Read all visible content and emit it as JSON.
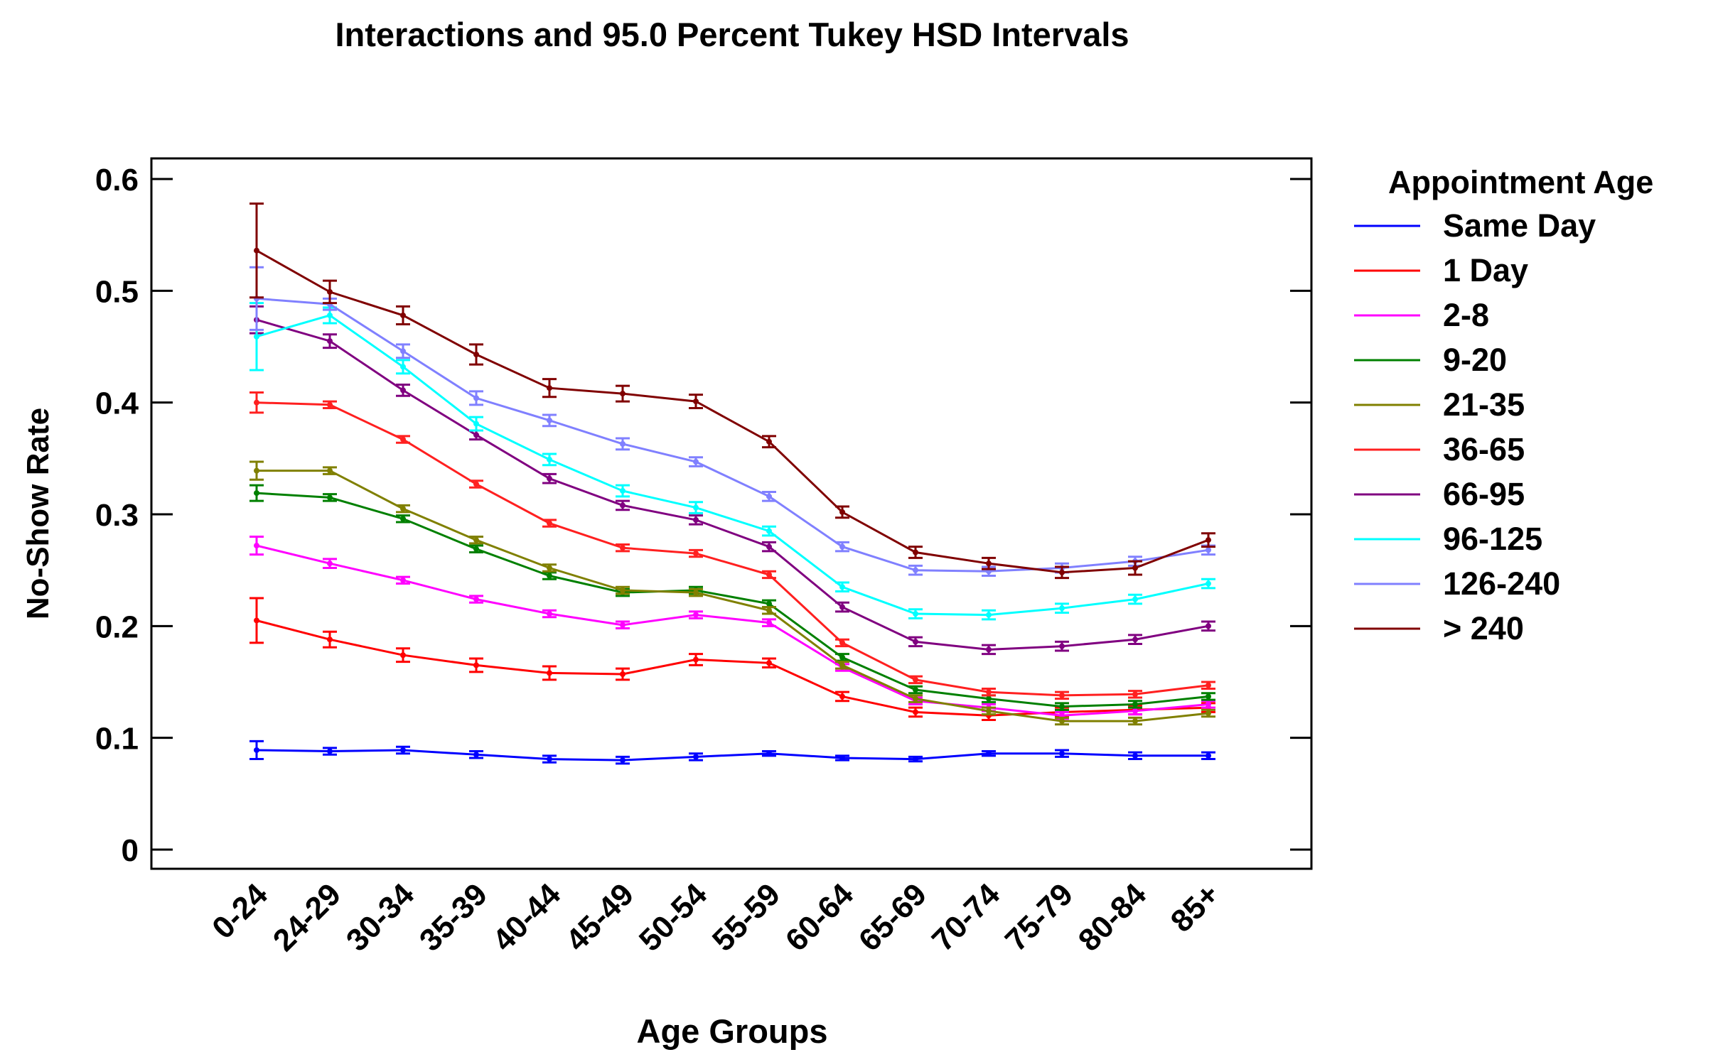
{
  "chart_data": {
    "type": "line",
    "title": "Interactions and 95.0 Percent Tukey HSD Intervals",
    "xlabel": "Age Groups",
    "ylabel": "No-Show Rate",
    "ylim": [
      0,
      0.6
    ],
    "yticks": [
      "0",
      "0.1",
      "0.2",
      "0.3",
      "0.4",
      "0.5",
      "0.6"
    ],
    "grid": false,
    "legend_title": "Appointment Age",
    "legend_position": "right",
    "categories": [
      "0-24",
      "24-29",
      "30-34",
      "35-39",
      "40-44",
      "45-49",
      "50-54",
      "55-59",
      "60-64",
      "65-69",
      "70-74",
      "75-79",
      "80-84",
      "85+"
    ],
    "series": [
      {
        "name": "Same Day",
        "color": "#0000ff",
        "values": [
          0.089,
          0.088,
          0.089,
          0.085,
          0.081,
          0.08,
          0.083,
          0.086,
          0.082,
          0.081,
          0.086,
          0.086,
          0.084,
          0.084
        ],
        "errors": [
          0.008,
          0.003,
          0.003,
          0.003,
          0.003,
          0.003,
          0.003,
          0.002,
          0.002,
          0.002,
          0.002,
          0.003,
          0.003,
          0.003
        ]
      },
      {
        "name": "1 Day",
        "color": "#ff0000",
        "values": [
          0.205,
          0.188,
          0.174,
          0.165,
          0.158,
          0.157,
          0.17,
          0.167,
          0.137,
          0.123,
          0.12,
          0.123,
          0.125,
          0.127
        ],
        "errors": [
          0.02,
          0.007,
          0.006,
          0.006,
          0.006,
          0.005,
          0.005,
          0.004,
          0.004,
          0.004,
          0.004,
          0.004,
          0.004,
          0.004
        ]
      },
      {
        "name": "2-8",
        "color": "#ff00ff",
        "values": [
          0.272,
          0.256,
          0.241,
          0.224,
          0.211,
          0.201,
          0.21,
          0.203,
          0.163,
          0.133,
          0.127,
          0.12,
          0.124,
          0.13
        ],
        "errors": [
          0.008,
          0.004,
          0.003,
          0.003,
          0.003,
          0.003,
          0.003,
          0.003,
          0.003,
          0.003,
          0.003,
          0.003,
          0.003,
          0.003
        ]
      },
      {
        "name": "9-20",
        "color": "#008000",
        "values": [
          0.319,
          0.315,
          0.296,
          0.269,
          0.245,
          0.23,
          0.232,
          0.22,
          0.172,
          0.143,
          0.135,
          0.128,
          0.13,
          0.137
        ],
        "errors": [
          0.007,
          0.003,
          0.003,
          0.003,
          0.003,
          0.003,
          0.003,
          0.003,
          0.003,
          0.003,
          0.003,
          0.003,
          0.003,
          0.003
        ]
      },
      {
        "name": "21-35",
        "color": "#808000",
        "values": [
          0.339,
          0.339,
          0.305,
          0.277,
          0.252,
          0.232,
          0.23,
          0.214,
          0.165,
          0.135,
          0.124,
          0.115,
          0.115,
          0.122
        ],
        "errors": [
          0.008,
          0.003,
          0.003,
          0.003,
          0.003,
          0.003,
          0.003,
          0.003,
          0.003,
          0.003,
          0.003,
          0.003,
          0.003,
          0.003
        ]
      },
      {
        "name": "36-65",
        "color": "#ff2020",
        "values": [
          0.4,
          0.398,
          0.367,
          0.327,
          0.292,
          0.27,
          0.265,
          0.246,
          0.185,
          0.152,
          0.141,
          0.138,
          0.139,
          0.147
        ],
        "errors": [
          0.009,
          0.003,
          0.003,
          0.003,
          0.003,
          0.003,
          0.003,
          0.003,
          0.003,
          0.003,
          0.003,
          0.003,
          0.003,
          0.003
        ]
      },
      {
        "name": "66-95",
        "color": "#800080",
        "values": [
          0.474,
          0.455,
          0.411,
          0.371,
          0.332,
          0.308,
          0.295,
          0.271,
          0.217,
          0.186,
          0.179,
          0.182,
          0.188,
          0.2
        ],
        "errors": [
          0.012,
          0.006,
          0.005,
          0.004,
          0.004,
          0.004,
          0.004,
          0.004,
          0.004,
          0.004,
          0.004,
          0.004,
          0.004,
          0.004
        ]
      },
      {
        "name": "96-125",
        "color": "#00ffff",
        "values": [
          0.459,
          0.478,
          0.432,
          0.381,
          0.349,
          0.321,
          0.306,
          0.285,
          0.235,
          0.211,
          0.21,
          0.216,
          0.224,
          0.238
        ],
        "errors": [
          0.03,
          0.007,
          0.006,
          0.006,
          0.005,
          0.005,
          0.005,
          0.004,
          0.004,
          0.004,
          0.004,
          0.004,
          0.004,
          0.004
        ]
      },
      {
        "name": "126-240",
        "color": "#8080ff",
        "values": [
          0.493,
          0.488,
          0.446,
          0.404,
          0.384,
          0.363,
          0.347,
          0.316,
          0.271,
          0.25,
          0.249,
          0.252,
          0.258,
          0.268
        ],
        "errors": [
          0.028,
          0.005,
          0.006,
          0.006,
          0.005,
          0.005,
          0.004,
          0.004,
          0.004,
          0.004,
          0.004,
          0.004,
          0.004,
          0.004
        ]
      },
      {
        "name": "> 240",
        "color": "#800000",
        "values": [
          0.536,
          0.499,
          0.478,
          0.443,
          0.413,
          0.408,
          0.401,
          0.365,
          0.302,
          0.266,
          0.256,
          0.248,
          0.252,
          0.277
        ],
        "errors": [
          0.042,
          0.01,
          0.008,
          0.009,
          0.008,
          0.007,
          0.006,
          0.005,
          0.005,
          0.005,
          0.005,
          0.005,
          0.006,
          0.006
        ]
      }
    ]
  }
}
